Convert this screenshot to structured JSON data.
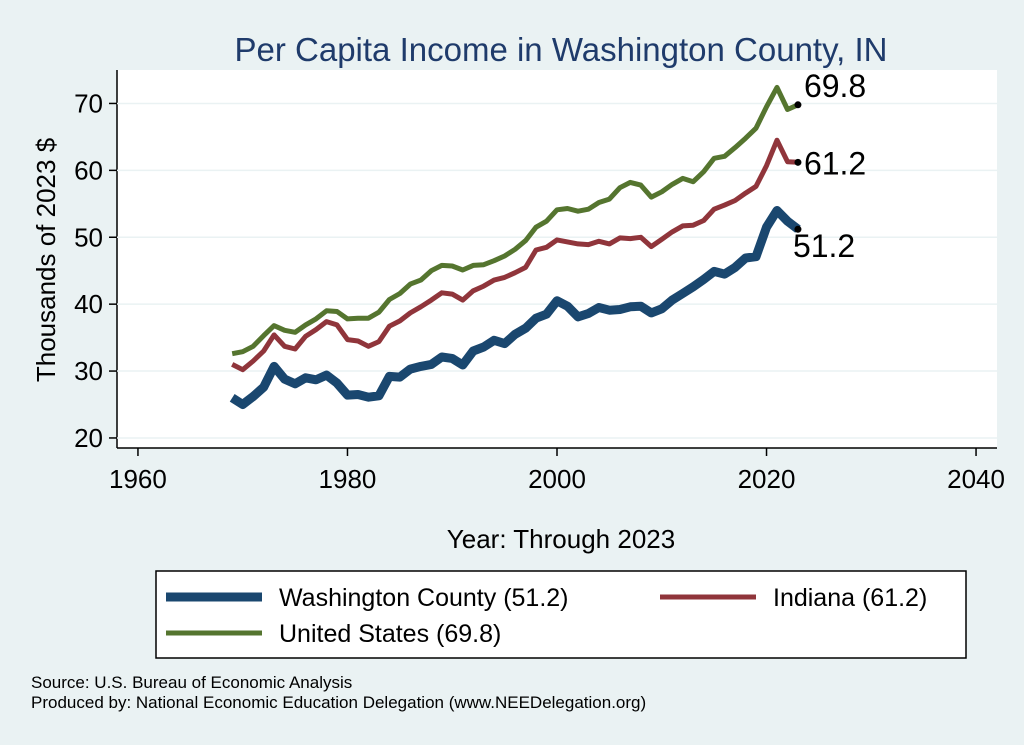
{
  "chart_data": {
    "type": "line",
    "title": "Per Capita Income in Washington County, IN",
    "xlabel": "Year: Through 2023",
    "ylabel": "Thousands of 2023 $",
    "xlim": [
      1958,
      2042
    ],
    "ylim": [
      18.5,
      75
    ],
    "xticks": [
      1960,
      1980,
      2000,
      2020,
      2040
    ],
    "yticks": [
      20,
      30,
      40,
      50,
      60,
      70
    ],
    "x": [
      1969,
      1970,
      1971,
      1972,
      1973,
      1974,
      1975,
      1976,
      1977,
      1978,
      1979,
      1980,
      1981,
      1982,
      1983,
      1984,
      1985,
      1986,
      1987,
      1988,
      1989,
      1990,
      1991,
      1992,
      1993,
      1994,
      1995,
      1996,
      1997,
      1998,
      1999,
      2000,
      2001,
      2002,
      2003,
      2004,
      2005,
      2006,
      2007,
      2008,
      2009,
      2010,
      2011,
      2012,
      2013,
      2014,
      2015,
      2016,
      2017,
      2018,
      2019,
      2020,
      2021,
      2022,
      2023
    ],
    "series": [
      {
        "name": "Washington County",
        "legend": "Washington County (51.2)",
        "end_label": "51.2",
        "color": "#1a476f",
        "width": 9,
        "values": [
          26.0,
          25.0,
          26.2,
          27.6,
          30.7,
          28.8,
          28.1,
          29.0,
          28.7,
          29.4,
          28.2,
          26.4,
          26.5,
          26.1,
          26.3,
          29.2,
          29.1,
          30.3,
          30.7,
          31.0,
          32.1,
          31.9,
          30.9,
          33.0,
          33.6,
          34.6,
          34.1,
          35.5,
          36.4,
          37.9,
          38.5,
          40.5,
          39.7,
          38.1,
          38.6,
          39.5,
          39.1,
          39.2,
          39.6,
          39.7,
          38.7,
          39.3,
          40.6,
          41.6,
          42.6,
          43.7,
          44.9,
          44.5,
          45.5,
          46.9,
          47.1,
          51.5,
          54.0,
          52.4,
          51.2
        ]
      },
      {
        "name": "Indiana",
        "legend": "Indiana (61.2)",
        "end_label": "61.2",
        "color": "#90353b",
        "width": 5,
        "values": [
          31.0,
          30.2,
          31.5,
          33.0,
          35.4,
          33.7,
          33.3,
          35.2,
          36.2,
          37.4,
          36.9,
          34.7,
          34.5,
          33.7,
          34.4,
          36.7,
          37.5,
          38.7,
          39.6,
          40.6,
          41.7,
          41.5,
          40.6,
          42.0,
          42.7,
          43.6,
          44.0,
          44.7,
          45.5,
          48.1,
          48.5,
          49.6,
          49.3,
          49.0,
          48.9,
          49.4,
          49.0,
          49.9,
          49.8,
          50.0,
          48.6,
          49.7,
          50.8,
          51.7,
          51.8,
          52.5,
          54.2,
          54.8,
          55.5,
          56.6,
          57.6,
          60.7,
          64.5,
          61.3,
          61.2
        ]
      },
      {
        "name": "United States",
        "legend": "United States (69.8)",
        "end_label": "69.8",
        "color": "#55752f",
        "width": 5,
        "values": [
          32.6,
          32.9,
          33.7,
          35.3,
          36.8,
          36.1,
          35.8,
          36.9,
          37.8,
          39.0,
          38.9,
          37.8,
          37.9,
          37.9,
          38.8,
          40.7,
          41.6,
          43.0,
          43.6,
          45.0,
          45.8,
          45.7,
          45.1,
          45.8,
          45.9,
          46.5,
          47.2,
          48.2,
          49.5,
          51.5,
          52.4,
          54.1,
          54.3,
          53.9,
          54.2,
          55.2,
          55.7,
          57.4,
          58.2,
          57.8,
          56.0,
          56.8,
          57.9,
          58.8,
          58.3,
          59.8,
          61.8,
          62.1,
          63.4,
          64.8,
          66.3,
          69.5,
          72.4,
          69.1,
          69.8
        ]
      }
    ]
  },
  "source_line_1": "Source: U.S. Bureau of Economic Analysis",
  "source_line_2": "Produced by: National Economic Education Delegation (www.NEEDelegation.org)"
}
